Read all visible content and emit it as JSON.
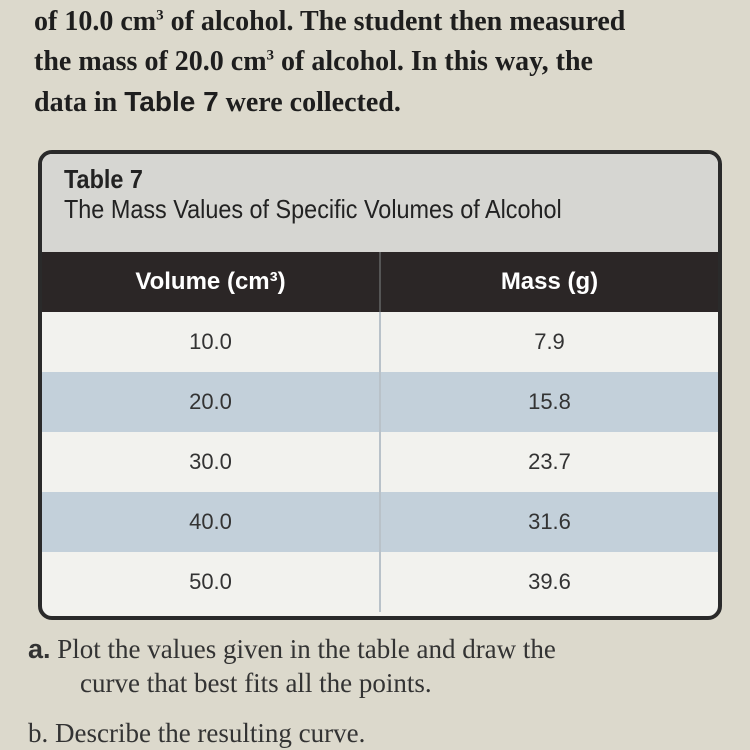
{
  "intro": {
    "line1_a": "of 10.0 cm",
    "line1_b": " of alcohol. The student then measured",
    "line2_a": "the mass of 20.0 cm",
    "line2_b": " of alcohol. In this way, the",
    "line3_a": "data in ",
    "line3_ref": "Table 7",
    "line3_b": " were collected.",
    "sup": "3"
  },
  "table": {
    "label": "Table 7",
    "title": "The Mass Values of Specific Volumes of Alcohol",
    "headers": [
      "Volume (cm³)",
      "Mass (g)"
    ],
    "rows": [
      [
        "10.0",
        "7.9"
      ],
      [
        "20.0",
        "15.8"
      ],
      [
        "30.0",
        "23.7"
      ],
      [
        "40.0",
        "31.6"
      ],
      [
        "50.0",
        "39.6"
      ]
    ]
  },
  "questions": {
    "a_label": "a.",
    "a_text1": "Plot the values given in the table and draw the",
    "a_text2": "curve that best fits all the points.",
    "b_text": "b. Describe the resulting curve."
  }
}
